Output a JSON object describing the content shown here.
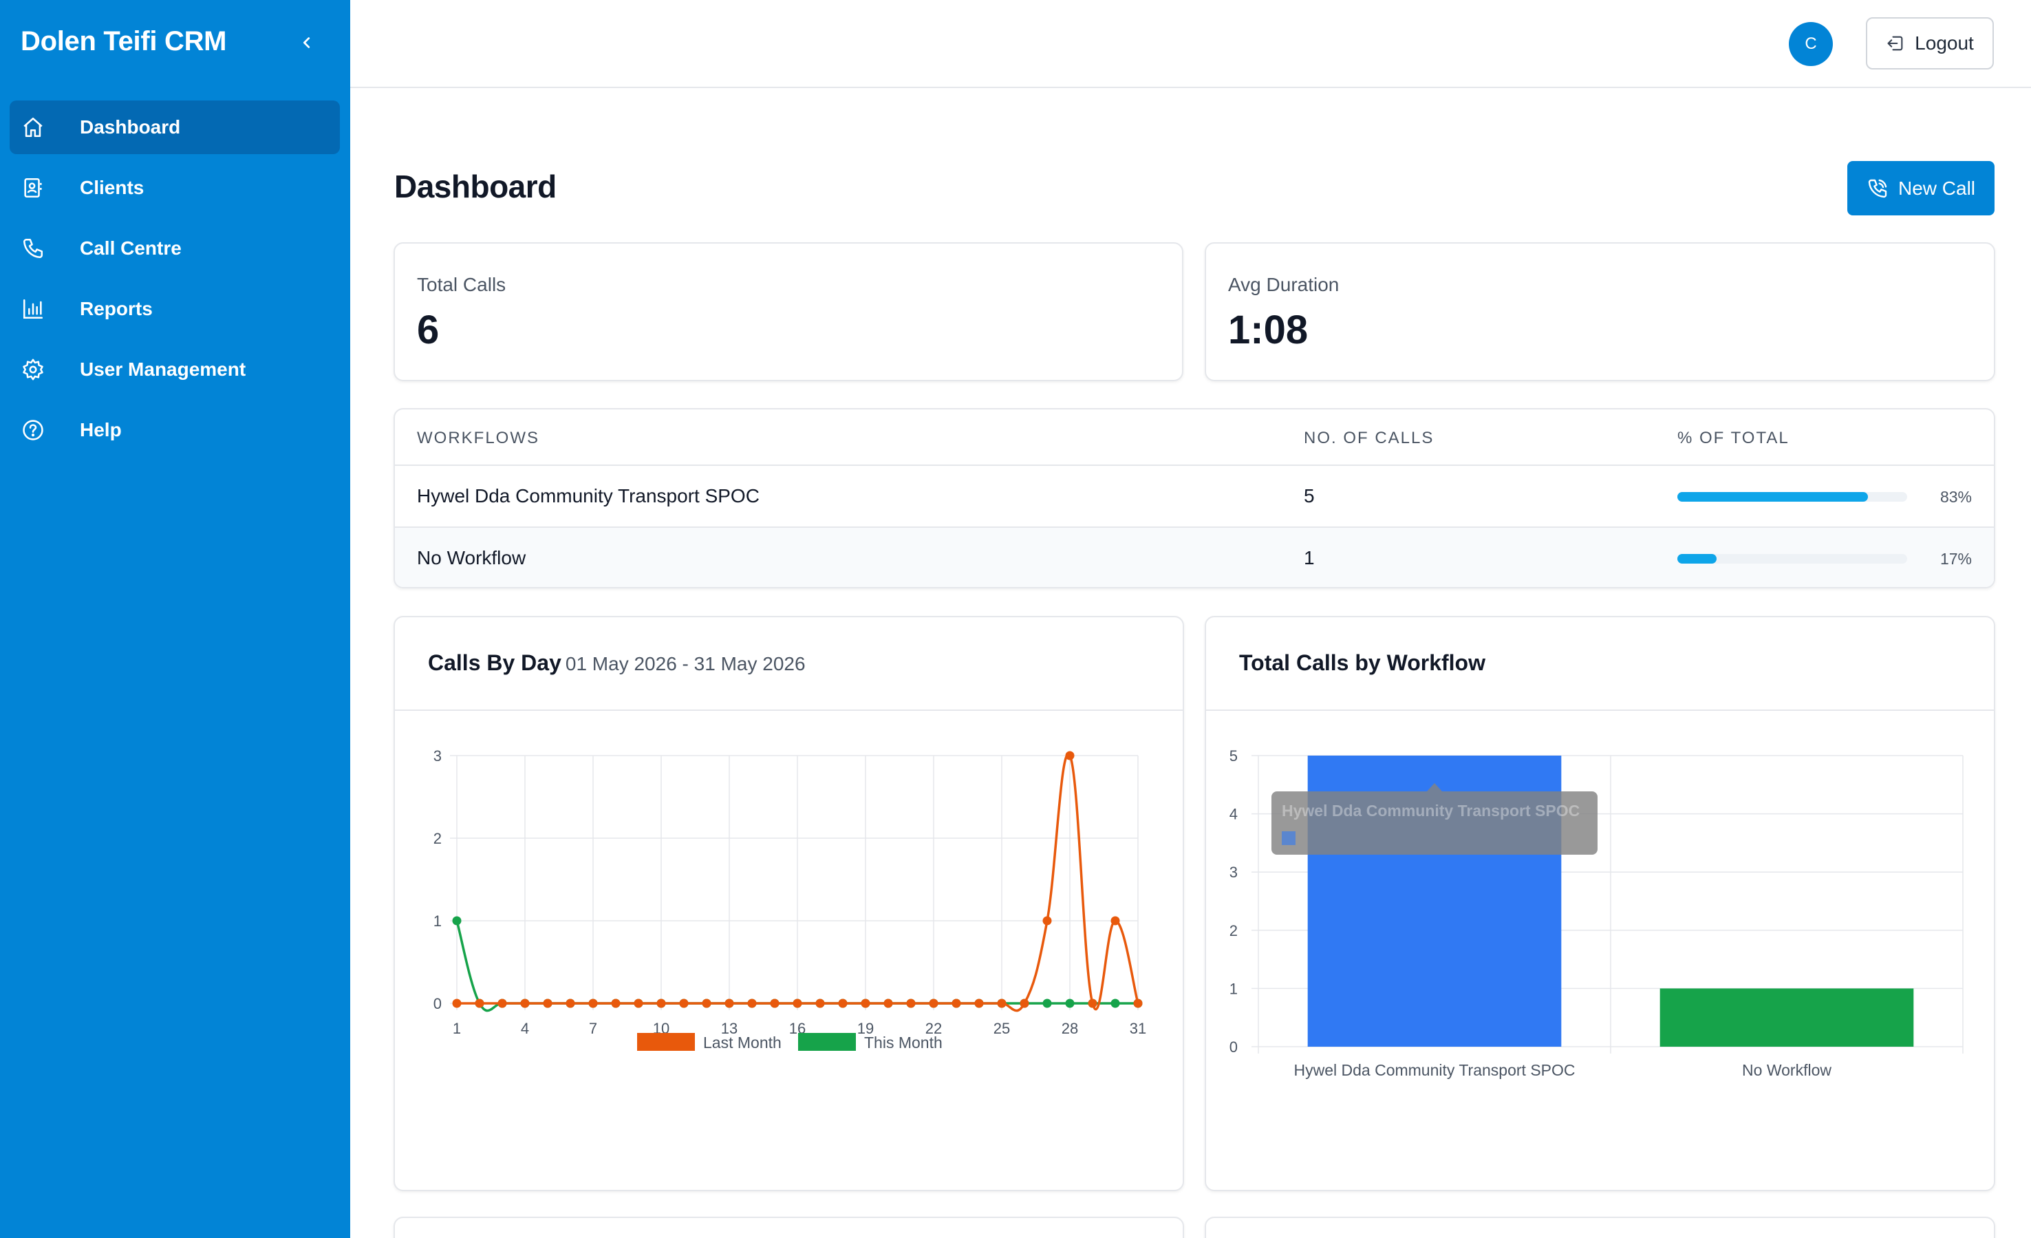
{
  "sidebar": {
    "brand": "Dolen Teifi CRM",
    "items": [
      {
        "label": "Dashboard",
        "icon": "home-icon",
        "active": true
      },
      {
        "label": "Clients",
        "icon": "contact-book-icon"
      },
      {
        "label": "Call Centre",
        "icon": "phone-icon"
      },
      {
        "label": "Reports",
        "icon": "bar-chart-icon"
      },
      {
        "label": "User Management",
        "icon": "gear-icon"
      },
      {
        "label": "Help",
        "icon": "help-circle-icon"
      }
    ]
  },
  "header": {
    "avatar_initial": "C",
    "logout_label": "Logout"
  },
  "main": {
    "title": "Dashboard",
    "new_call_label": "New Call",
    "stats": [
      {
        "label": "Total Calls",
        "value": "6"
      },
      {
        "label": "Avg Duration",
        "value": "1:08"
      }
    ],
    "workflows_table": {
      "columns": [
        "WORKFLOWS",
        "NO. OF CALLS",
        "% OF TOTAL"
      ],
      "rows": [
        {
          "workflow": "Hywel Dda Community Transport SPOC",
          "calls": "5",
          "percent": 83,
          "percent_label": "83%"
        },
        {
          "workflow": "No Workflow",
          "calls": "1",
          "percent": 17,
          "percent_label": "17%"
        }
      ]
    }
  },
  "colors": {
    "sidebar": "#0284d6",
    "sidebar_active": "#0369b3",
    "progress": "#0ea5e9",
    "last_month": "#e8590c",
    "this_month": "#16a34a",
    "bar_blue": "#3079f3",
    "bar_green": "#16a34a"
  },
  "chart_data": [
    {
      "type": "line",
      "title": "Calls By Day",
      "subtitle": "01 May 2026 - 31 May 2026",
      "x": [
        1,
        2,
        3,
        4,
        5,
        6,
        7,
        8,
        9,
        10,
        11,
        12,
        13,
        14,
        15,
        16,
        17,
        18,
        19,
        20,
        21,
        22,
        23,
        24,
        25,
        26,
        27,
        28,
        29,
        30,
        31
      ],
      "x_ticks": [
        1,
        4,
        7,
        10,
        13,
        16,
        19,
        22,
        25,
        28,
        31
      ],
      "y_ticks": [
        0,
        1,
        2,
        3
      ],
      "ylim": [
        0,
        3
      ],
      "grid": true,
      "legend_position": "bottom",
      "series": [
        {
          "name": "Last Month",
          "color": "#e8590c",
          "values": [
            0,
            0,
            0,
            0,
            0,
            0,
            0,
            0,
            0,
            0,
            0,
            0,
            0,
            0,
            0,
            0,
            0,
            0,
            0,
            0,
            0,
            0,
            0,
            0,
            0,
            0,
            1,
            3,
            0,
            1,
            0
          ]
        },
        {
          "name": "This Month",
          "color": "#16a34a",
          "values": [
            1,
            0,
            0,
            0,
            0,
            0,
            0,
            0,
            0,
            0,
            0,
            0,
            0,
            0,
            0,
            0,
            0,
            0,
            0,
            0,
            0,
            0,
            0,
            0,
            0,
            0,
            0,
            0,
            0,
            0,
            0
          ]
        }
      ]
    },
    {
      "type": "bar",
      "title": "Total Calls by Workflow",
      "categories": [
        "Hywel Dda Community Transport SPOC",
        "No Workflow"
      ],
      "values": [
        5,
        1
      ],
      "colors": [
        "#3079f3",
        "#16a34a"
      ],
      "y_ticks": [
        0,
        1,
        2,
        3,
        4,
        5
      ],
      "ylim": [
        0,
        5
      ],
      "grid": true,
      "tooltip": {
        "title": "Hywel Dda Community Transport SPOC"
      }
    }
  ]
}
